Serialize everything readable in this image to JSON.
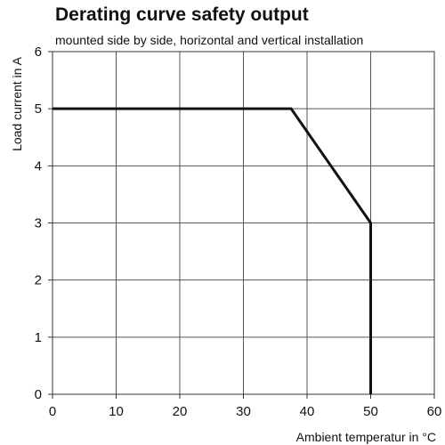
{
  "chart_data": {
    "type": "line",
    "title": "Derating curve safety output",
    "subtitle": "mounted side by side, horizontal and vertical installation",
    "xlabel": "Ambient temperatur in °C",
    "ylabel": "Load  current in A",
    "xlim": [
      0,
      60
    ],
    "ylim": [
      0,
      6
    ],
    "xticks": [
      0,
      10,
      20,
      30,
      40,
      50,
      60
    ],
    "yticks": [
      0,
      1,
      2,
      3,
      4,
      5,
      6
    ],
    "grid": true,
    "legend": "none",
    "series": [
      {
        "x": [
          0,
          37.5,
          50,
          50
        ],
        "y": [
          5,
          5,
          3,
          0
        ],
        "color": "#111111"
      }
    ]
  }
}
